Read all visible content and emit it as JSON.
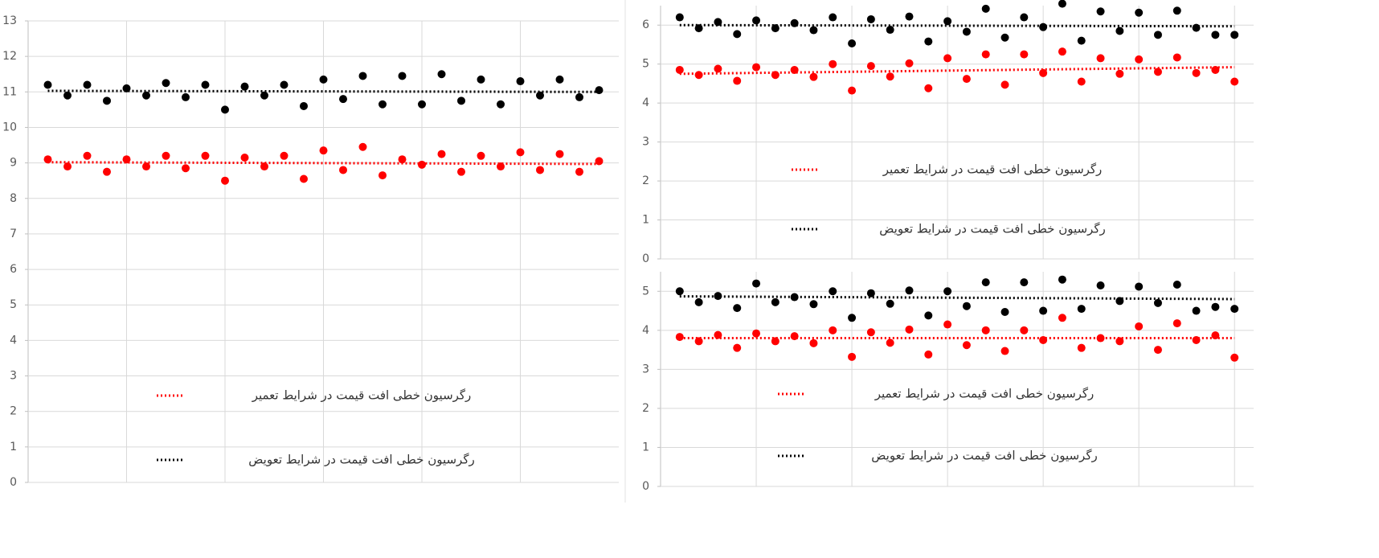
{
  "chart_data": [
    {
      "type": "scatter",
      "ylim": [
        0,
        13
      ],
      "yticks": [
        0,
        1,
        2,
        3,
        4,
        5,
        6,
        7,
        8,
        9,
        10,
        11,
        12,
        13
      ],
      "grid": true,
      "legend": "bottom",
      "series": [
        {
          "color": "#000000",
          "values": [
            11.2,
            10.9,
            11.2,
            10.75,
            11.1,
            10.9,
            11.25,
            10.85,
            11.2,
            10.5,
            11.15,
            10.9,
            11.2,
            10.6,
            11.35,
            10.8,
            11.45,
            10.65,
            11.45,
            10.65,
            11.5,
            10.75,
            11.35,
            10.65,
            11.3,
            10.9,
            11.35,
            10.85,
            11.05
          ]
        },
        {
          "color": "#ff0000",
          "values": [
            9.1,
            8.9,
            9.2,
            8.75,
            9.1,
            8.9,
            9.2,
            8.85,
            9.2,
            8.5,
            9.15,
            8.9,
            9.2,
            8.55,
            9.35,
            8.8,
            9.45,
            8.65,
            9.1,
            8.95,
            9.25,
            8.75,
            9.2,
            8.9,
            9.3,
            8.8,
            9.25,
            8.75,
            9.05
          ]
        }
      ],
      "trendlines": [
        {
          "name": "رگرسیون خطی افت قیمت در شرایط تعمیر",
          "color": "#ff0000",
          "values": [
            9.02,
            8.97
          ]
        },
        {
          "name": "رگرسیون خطی افت قیمت در شرایط تعویض",
          "color": "#000000",
          "values": [
            11.03,
            11.0
          ]
        }
      ]
    },
    {
      "type": "scatter",
      "ylim": [
        0,
        6.5
      ],
      "yticks": [
        0,
        1,
        2,
        3,
        4,
        5,
        6
      ],
      "grid": true,
      "legend": "bottom",
      "series": [
        {
          "color": "#000000",
          "values": [
            6.2,
            5.92,
            6.08,
            5.77,
            6.12,
            5.92,
            6.05,
            5.87,
            6.2,
            5.53,
            6.15,
            5.88,
            6.22,
            5.58,
            6.1,
            5.83,
            6.42,
            5.68,
            6.2,
            5.95,
            6.55,
            5.6,
            6.35,
            5.85,
            6.32,
            5.75,
            6.37,
            5.93,
            5.75,
            5.75
          ]
        },
        {
          "color": "#ff0000",
          "values": [
            4.85,
            4.72,
            4.88,
            4.57,
            4.92,
            4.72,
            4.85,
            4.67,
            5.0,
            4.32,
            4.95,
            4.68,
            5.02,
            4.38,
            5.15,
            4.62,
            5.25,
            4.47,
            5.25,
            4.77,
            5.32,
            4.55,
            5.15,
            4.75,
            5.12,
            4.8,
            5.17,
            4.77,
            4.85,
            4.55
          ]
        }
      ],
      "trendlines": [
        {
          "name": "رگرسیون خطی افت قیمت در شرایط تعمیر",
          "color": "#ff0000",
          "values": [
            4.75,
            4.92
          ]
        },
        {
          "name": "رگرسیون خطی افت قیمت در شرایط تعویض",
          "color": "#000000",
          "values": [
            6.0,
            5.97
          ]
        }
      ]
    },
    {
      "type": "scatter",
      "ylim": [
        0,
        5.5
      ],
      "yticks": [
        0,
        1,
        2,
        3,
        4,
        5
      ],
      "grid": true,
      "legend": "bottom",
      "series": [
        {
          "color": "#000000",
          "values": [
            5.0,
            4.72,
            4.88,
            4.57,
            5.2,
            4.72,
            4.85,
            4.67,
            5.0,
            4.32,
            4.95,
            4.68,
            5.02,
            4.38,
            5.0,
            4.62,
            5.23,
            4.47,
            5.23,
            4.5,
            5.3,
            4.55,
            5.15,
            4.75,
            5.12,
            4.7,
            5.17,
            4.5,
            4.6,
            4.55
          ]
        },
        {
          "color": "#ff0000",
          "values": [
            3.83,
            3.72,
            3.88,
            3.55,
            3.92,
            3.72,
            3.85,
            3.67,
            4.0,
            3.32,
            3.95,
            3.68,
            4.02,
            3.38,
            4.15,
            3.62,
            4.0,
            3.47,
            4.0,
            3.75,
            4.32,
            3.55,
            3.8,
            3.72,
            4.1,
            3.5,
            4.18,
            3.75,
            3.87,
            3.3
          ]
        }
      ],
      "trendlines": [
        {
          "name": "رگرسیون خطی افت قیمت در شرایط تعمیر",
          "color": "#ff0000",
          "values": [
            3.8,
            3.8
          ]
        },
        {
          "name": "رگرسیون خطی افت قیمت در شرایط تعویض",
          "color": "#000000",
          "values": [
            4.87,
            4.8
          ]
        }
      ]
    }
  ]
}
